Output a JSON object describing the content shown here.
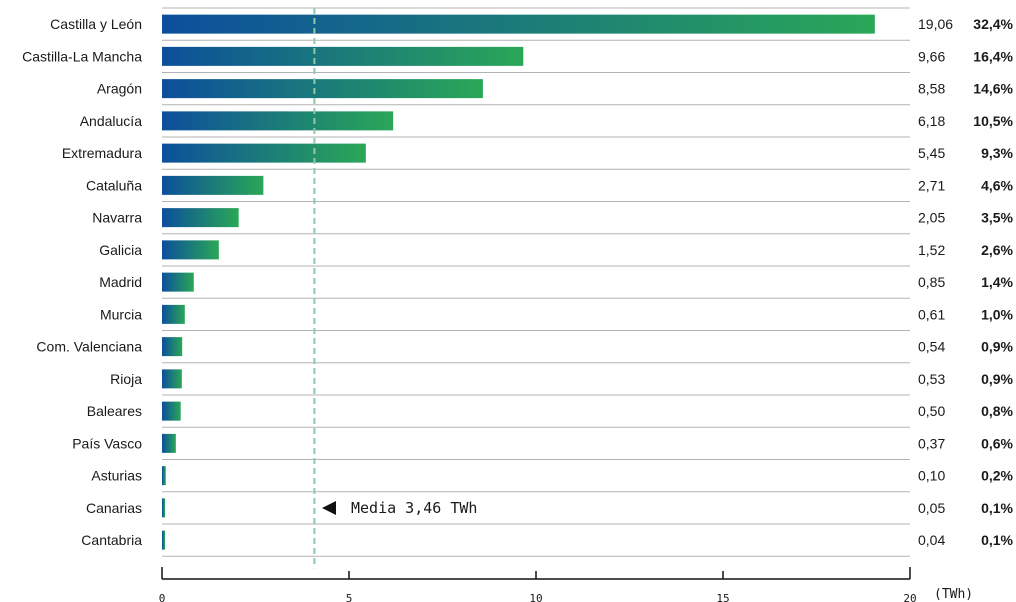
{
  "chart_data": {
    "type": "bar",
    "orientation": "horizontal",
    "categories": [
      "Castilla y León",
      "Castilla-La Mancha",
      "Aragón",
      "Andalucía",
      "Extremadura",
      "Cataluña",
      "Navarra",
      "Galicia",
      "Madrid",
      "Murcia",
      "Com. Valenciana",
      "Rioja",
      "Baleares",
      "País Vasco",
      "Asturias",
      "Canarias",
      "Cantabria"
    ],
    "values": [
      19.06,
      9.66,
      8.58,
      6.18,
      5.45,
      2.71,
      2.05,
      1.52,
      0.85,
      0.61,
      0.54,
      0.53,
      0.5,
      0.37,
      0.1,
      0.05,
      0.04
    ],
    "value_labels": [
      "19,06",
      "9,66",
      "8,58",
      "6,18",
      "5,45",
      "2,71",
      "2,05",
      "1,52",
      "0,85",
      "0,61",
      "0,54",
      "0,53",
      "0,50",
      "0,37",
      "0,10",
      "0,05",
      "0,04"
    ],
    "percent_labels": [
      "32,4%",
      "16,4%",
      "14,6%",
      "10,5%",
      "9,3%",
      "4,6%",
      "3,5%",
      "2,6%",
      "1,4%",
      "1,0%",
      "0,9%",
      "0,9%",
      "0,8%",
      "0,6%",
      "0,2%",
      "0,1%",
      "0,1%"
    ],
    "xlim": [
      0,
      20
    ],
    "x_ticks": [
      "0",
      "5",
      "10",
      "15",
      "20"
    ],
    "x_unit": "(TWh)",
    "mean": {
      "value": 3.46,
      "label": "Media 3,46 TWh"
    },
    "grid": "horizontal row separators",
    "colors": {
      "gradient_start": "#0c4f9c",
      "gradient_end": "#2aa757",
      "mean_line": "#8fc9a8",
      "grid": "#b3b3b3",
      "axis": "#111111"
    }
  }
}
